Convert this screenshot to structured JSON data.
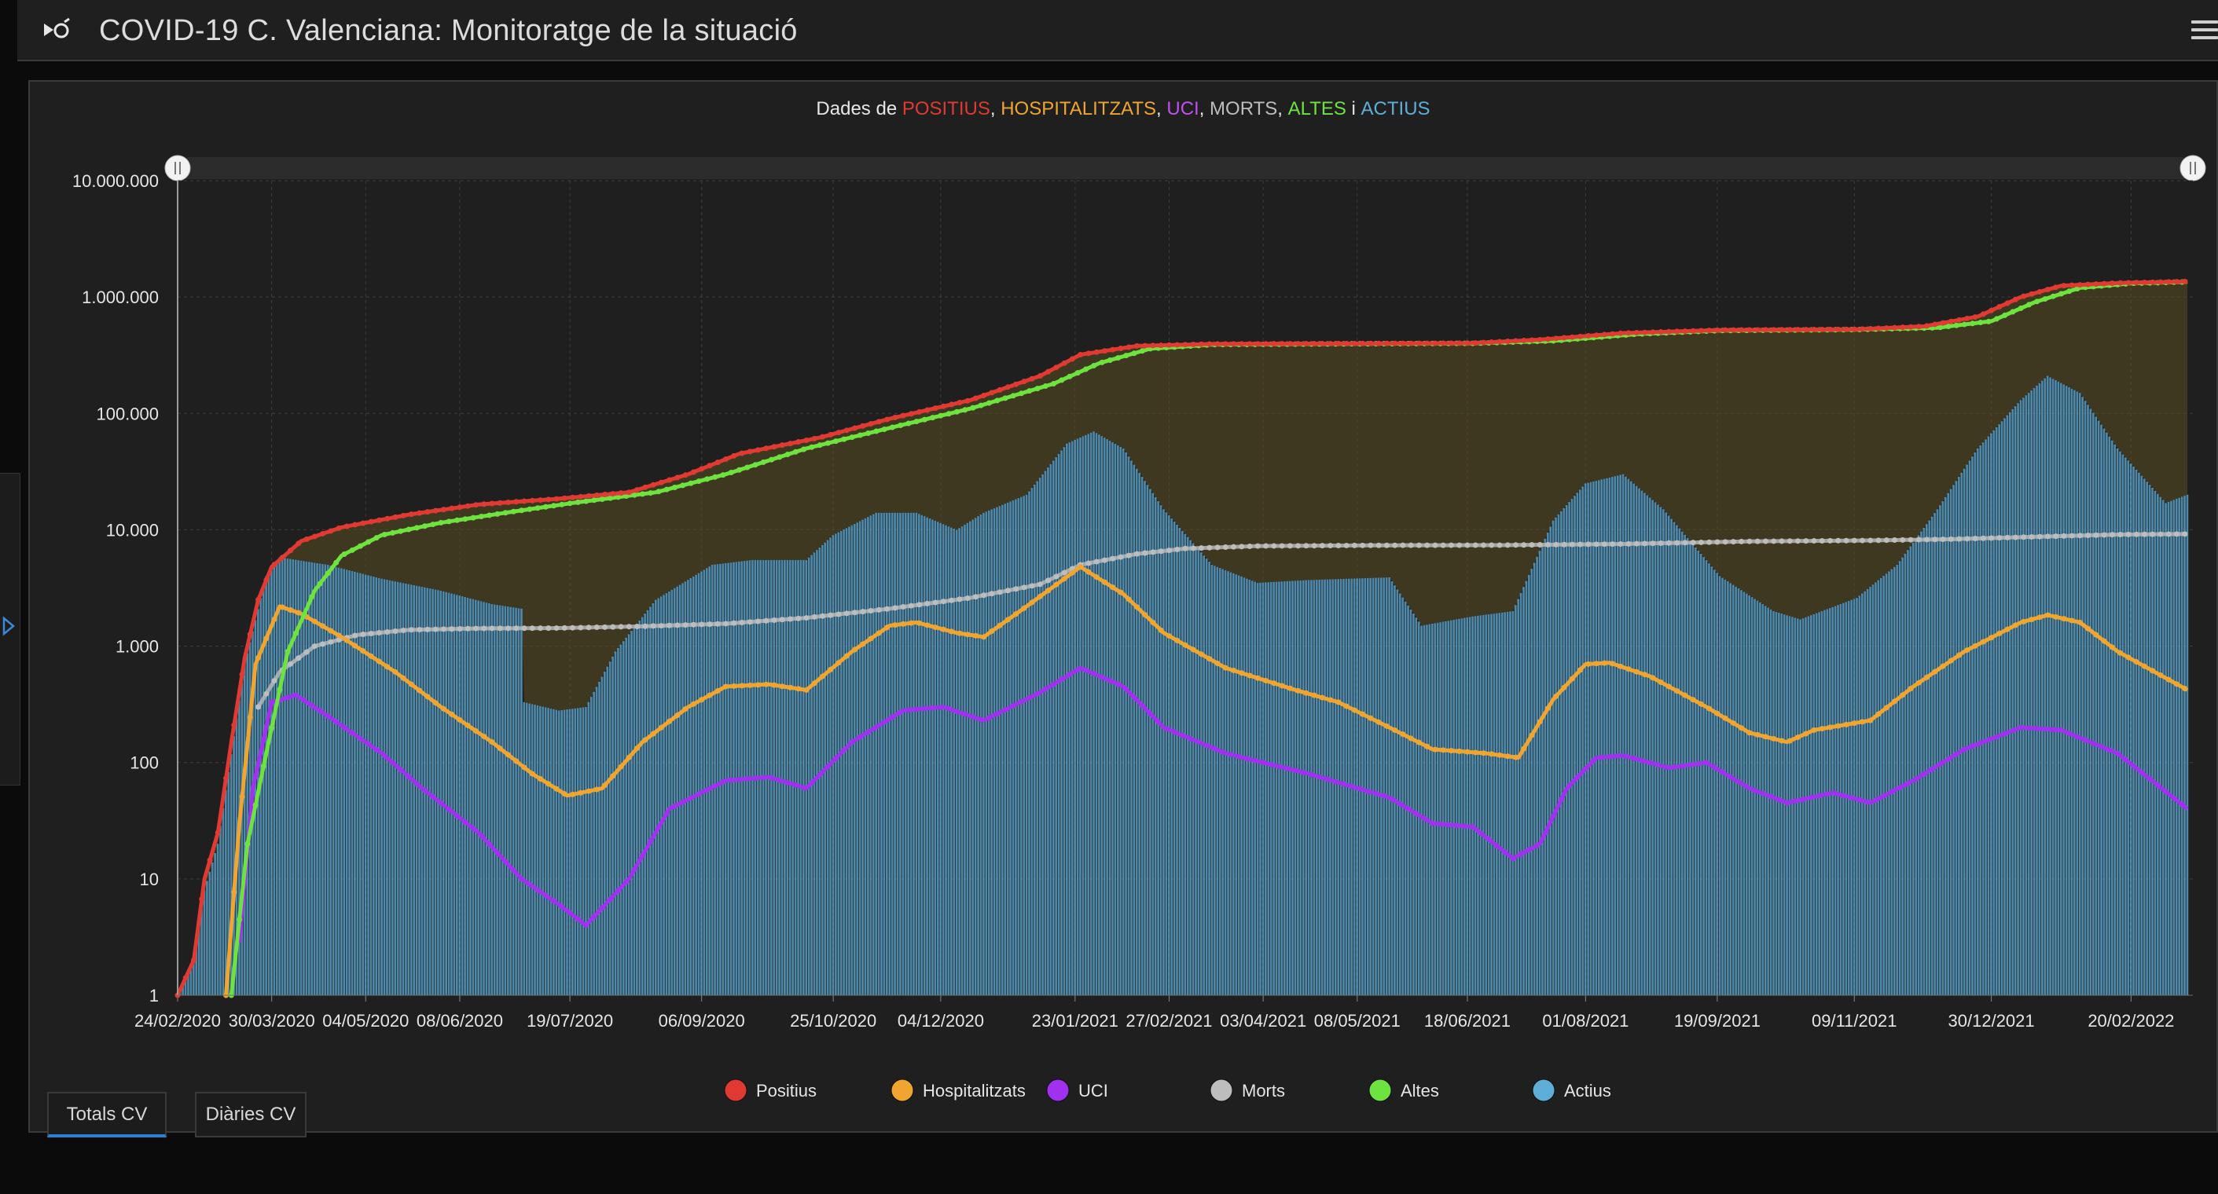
{
  "header": {
    "title": "COVID-19 C. Valenciana: Monitoratge de la situació"
  },
  "tabs": [
    {
      "label": "Totals CV",
      "active": true
    },
    {
      "label": "Diàries CV",
      "active": false
    }
  ],
  "colors": {
    "positius": "#e03a32",
    "hospitalitzats": "#f0a531",
    "uci": "#a230f0",
    "morts": "#bdbdbd",
    "altes": "#6ee33f",
    "actius": "#5faed9",
    "panel_bg": "#1f1f1f",
    "grid": "#3d3d3d",
    "text": "#e6e6e6"
  },
  "chart_data": {
    "type": "line",
    "title_parts": [
      {
        "text": "Dades de ",
        "color": "#e6e6e6"
      },
      {
        "text": "POSITIUS",
        "color": "#e03a32"
      },
      {
        "text": ", ",
        "color": "#e6e6e6"
      },
      {
        "text": "HOSPITALITZATS",
        "color": "#f0a531"
      },
      {
        "text": ", ",
        "color": "#e6e6e6"
      },
      {
        "text": "UCI",
        "color": "#c050f0"
      },
      {
        "text": ", ",
        "color": "#e6e6e6"
      },
      {
        "text": "MORTS",
        "color": "#bdbdbd"
      },
      {
        "text": ", ",
        "color": "#e6e6e6"
      },
      {
        "text": "ALTES",
        "color": "#6ee33f"
      },
      {
        "text": " i ",
        "color": "#e6e6e6"
      },
      {
        "text": "ACTIUS",
        "color": "#5faed9"
      }
    ],
    "y_scale": "log",
    "ylim": [
      1,
      10000000
    ],
    "y_tick_values": [
      1,
      10,
      100,
      1000,
      10000,
      100000,
      1000000,
      10000000
    ],
    "y_tick_labels": [
      "1",
      "10",
      "100",
      "1.000",
      "10.000",
      "100.000",
      "1.000.000",
      "10.000.000"
    ],
    "x_tick_labels": [
      "24/02/2020",
      "30/03/2020",
      "04/05/2020",
      "08/06/2020",
      "19/07/2020",
      "06/09/2020",
      "25/10/2020",
      "04/12/2020",
      "23/01/2021",
      "27/02/2021",
      "03/04/2021",
      "08/05/2021",
      "18/06/2021",
      "01/08/2021",
      "19/09/2021",
      "09/11/2021",
      "30/12/2021",
      "20/02/2022"
    ],
    "x_range": [
      "2020-02-24",
      "2022-03-15"
    ],
    "grid": true,
    "legend_position": "bottom",
    "series": [
      {
        "name": "Positius",
        "key": "positius",
        "style": "line",
        "points": [
          [
            "2020-02-24",
            1
          ],
          [
            "2020-03-01",
            2
          ],
          [
            "2020-03-05",
            10
          ],
          [
            "2020-03-10",
            25
          ],
          [
            "2020-03-15",
            150
          ],
          [
            "2020-03-20",
            800
          ],
          [
            "2020-03-25",
            2500
          ],
          [
            "2020-03-30",
            4800
          ],
          [
            "2020-04-10",
            8000
          ],
          [
            "2020-04-25",
            10500
          ],
          [
            "2020-05-20",
            13500
          ],
          [
            "2020-06-15",
            16500
          ],
          [
            "2020-07-15",
            18500
          ],
          [
            "2020-08-10",
            21000
          ],
          [
            "2020-09-01",
            30000
          ],
          [
            "2020-09-20",
            45000
          ],
          [
            "2020-10-20",
            62000
          ],
          [
            "2020-11-15",
            90000
          ],
          [
            "2020-12-15",
            130000
          ],
          [
            "2021-01-10",
            210000
          ],
          [
            "2021-01-25",
            320000
          ],
          [
            "2021-02-15",
            380000
          ],
          [
            "2021-03-15",
            395000
          ],
          [
            "2021-05-01",
            398000
          ],
          [
            "2021-06-20",
            402000
          ],
          [
            "2021-07-15",
            430000
          ],
          [
            "2021-08-15",
            490000
          ],
          [
            "2021-09-20",
            520000
          ],
          [
            "2021-11-10",
            528000
          ],
          [
            "2021-12-05",
            560000
          ],
          [
            "2021-12-25",
            680000
          ],
          [
            "2022-01-10",
            1000000
          ],
          [
            "2022-01-25",
            1250000
          ],
          [
            "2022-02-15",
            1320000
          ],
          [
            "2022-03-13",
            1360000
          ]
        ]
      },
      {
        "name": "Hospitalitzats",
        "key": "hospitalitzats",
        "style": "line",
        "points": [
          [
            "2020-03-13",
            1
          ],
          [
            "2020-03-18",
            30
          ],
          [
            "2020-03-24",
            700
          ],
          [
            "2020-04-02",
            2200
          ],
          [
            "2020-04-10",
            1900
          ],
          [
            "2020-04-25",
            1200
          ],
          [
            "2020-05-15",
            600
          ],
          [
            "2020-06-01",
            300
          ],
          [
            "2020-06-20",
            150
          ],
          [
            "2020-07-05",
            80
          ],
          [
            "2020-07-18",
            52
          ],
          [
            "2020-07-31",
            60
          ],
          [
            "2020-08-15",
            150
          ],
          [
            "2020-09-01",
            300
          ],
          [
            "2020-09-15",
            450
          ],
          [
            "2020-10-01",
            470
          ],
          [
            "2020-10-15",
            420
          ],
          [
            "2020-11-01",
            900
          ],
          [
            "2020-11-15",
            1500
          ],
          [
            "2020-11-25",
            1600
          ],
          [
            "2020-12-10",
            1300
          ],
          [
            "2020-12-20",
            1200
          ],
          [
            "2021-01-05",
            2200
          ],
          [
            "2021-01-25",
            4800
          ],
          [
            "2021-02-10",
            2800
          ],
          [
            "2021-02-25",
            1300
          ],
          [
            "2021-03-20",
            650
          ],
          [
            "2021-04-15",
            420
          ],
          [
            "2021-05-01",
            330
          ],
          [
            "2021-05-20",
            200
          ],
          [
            "2021-06-05",
            130
          ],
          [
            "2021-06-25",
            120
          ],
          [
            "2021-07-07",
            110
          ],
          [
            "2021-07-20",
            350
          ],
          [
            "2021-08-01",
            700
          ],
          [
            "2021-08-10",
            720
          ],
          [
            "2021-08-25",
            550
          ],
          [
            "2021-09-15",
            300
          ],
          [
            "2021-10-01",
            180
          ],
          [
            "2021-10-15",
            150
          ],
          [
            "2021-10-25",
            190
          ],
          [
            "2021-11-15",
            230
          ],
          [
            "2021-12-01",
            450
          ],
          [
            "2021-12-20",
            900
          ],
          [
            "2022-01-10",
            1600
          ],
          [
            "2022-01-20",
            1850
          ],
          [
            "2022-02-01",
            1600
          ],
          [
            "2022-02-15",
            900
          ],
          [
            "2022-03-13",
            420
          ]
        ]
      },
      {
        "name": "UCI",
        "key": "uci",
        "style": "line",
        "points": [
          [
            "2020-03-18",
            3
          ],
          [
            "2020-03-23",
            60
          ],
          [
            "2020-03-30",
            330
          ],
          [
            "2020-04-08",
            380
          ],
          [
            "2020-04-20",
            250
          ],
          [
            "2020-05-10",
            120
          ],
          [
            "2020-05-25",
            60
          ],
          [
            "2020-06-15",
            25
          ],
          [
            "2020-07-01",
            10
          ],
          [
            "2020-07-15",
            6
          ],
          [
            "2020-07-25",
            4
          ],
          [
            "2020-08-10",
            10
          ],
          [
            "2020-08-25",
            40
          ],
          [
            "2020-09-15",
            70
          ],
          [
            "2020-10-01",
            75
          ],
          [
            "2020-10-15",
            60
          ],
          [
            "2020-11-01",
            150
          ],
          [
            "2020-11-20",
            280
          ],
          [
            "2020-12-05",
            300
          ],
          [
            "2020-12-20",
            230
          ],
          [
            "2021-01-10",
            400
          ],
          [
            "2021-01-25",
            650
          ],
          [
            "2021-02-10",
            450
          ],
          [
            "2021-02-25",
            200
          ],
          [
            "2021-03-20",
            120
          ],
          [
            "2021-04-20",
            80
          ],
          [
            "2021-05-20",
            50
          ],
          [
            "2021-06-05",
            30
          ],
          [
            "2021-06-20",
            28
          ],
          [
            "2021-07-05",
            15
          ],
          [
            "2021-07-15",
            20
          ],
          [
            "2021-07-25",
            60
          ],
          [
            "2021-08-05",
            110
          ],
          [
            "2021-08-15",
            115
          ],
          [
            "2021-09-01",
            90
          ],
          [
            "2021-09-15",
            100
          ],
          [
            "2021-10-01",
            60
          ],
          [
            "2021-10-15",
            45
          ],
          [
            "2021-11-01",
            55
          ],
          [
            "2021-11-15",
            45
          ],
          [
            "2021-12-01",
            70
          ],
          [
            "2021-12-20",
            130
          ],
          [
            "2022-01-10",
            200
          ],
          [
            "2022-01-25",
            190
          ],
          [
            "2022-02-15",
            120
          ],
          [
            "2022-03-13",
            40
          ]
        ]
      },
      {
        "name": "Morts",
        "key": "morts",
        "style": "line",
        "points": [
          [
            "2020-03-25",
            300
          ],
          [
            "2020-04-02",
            600
          ],
          [
            "2020-04-15",
            1000
          ],
          [
            "2020-05-01",
            1250
          ],
          [
            "2020-05-20",
            1380
          ],
          [
            "2020-06-15",
            1420
          ],
          [
            "2020-07-15",
            1430
          ],
          [
            "2020-08-15",
            1480
          ],
          [
            "2020-09-15",
            1560
          ],
          [
            "2020-10-15",
            1750
          ],
          [
            "2020-11-15",
            2100
          ],
          [
            "2020-12-15",
            2600
          ],
          [
            "2021-01-10",
            3400
          ],
          [
            "2021-01-25",
            5000
          ],
          [
            "2021-02-15",
            6200
          ],
          [
            "2021-03-05",
            6900
          ],
          [
            "2021-04-01",
            7250
          ],
          [
            "2021-05-15",
            7350
          ],
          [
            "2021-07-01",
            7380
          ],
          [
            "2021-08-15",
            7550
          ],
          [
            "2021-10-01",
            7950
          ],
          [
            "2021-11-15",
            8100
          ],
          [
            "2021-12-15",
            8300
          ],
          [
            "2022-01-15",
            8700
          ],
          [
            "2022-02-15",
            9100
          ],
          [
            "2022-03-13",
            9200
          ]
        ]
      },
      {
        "name": "Altes",
        "key": "altes",
        "style": "line",
        "points": [
          [
            "2020-03-15",
            1
          ],
          [
            "2020-03-21",
            20
          ],
          [
            "2020-03-28",
            120
          ],
          [
            "2020-04-05",
            900
          ],
          [
            "2020-04-15",
            3000
          ],
          [
            "2020-04-25",
            6000
          ],
          [
            "2020-05-10",
            9000
          ],
          [
            "2020-06-01",
            11500
          ],
          [
            "2020-06-25",
            14000
          ],
          [
            "2020-07-20",
            17000
          ],
          [
            "2020-08-20",
            21000
          ],
          [
            "2020-09-15",
            30000
          ],
          [
            "2020-10-15",
            50000
          ],
          [
            "2020-11-15",
            75000
          ],
          [
            "2020-12-15",
            110000
          ],
          [
            "2021-01-15",
            180000
          ],
          [
            "2021-02-01",
            270000
          ],
          [
            "2021-02-20",
            360000
          ],
          [
            "2021-03-15",
            390000
          ],
          [
            "2021-05-01",
            396000
          ],
          [
            "2021-06-20",
            400000
          ],
          [
            "2021-07-20",
            420000
          ],
          [
            "2021-08-20",
            480000
          ],
          [
            "2021-09-20",
            515000
          ],
          [
            "2021-11-10",
            525000
          ],
          [
            "2021-12-10",
            545000
          ],
          [
            "2021-12-30",
            620000
          ],
          [
            "2022-01-15",
            900000
          ],
          [
            "2022-02-01",
            1200000
          ],
          [
            "2022-02-20",
            1310000
          ],
          [
            "2022-03-13",
            1350000
          ]
        ]
      },
      {
        "name": "Actius",
        "key": "actius",
        "style": "bar",
        "points": [
          [
            "2020-02-24",
            1
          ],
          [
            "2020-03-01",
            2
          ],
          [
            "2020-03-05",
            8
          ],
          [
            "2020-03-10",
            20
          ],
          [
            "2020-03-20",
            700
          ],
          [
            "2020-03-28",
            4000
          ],
          [
            "2020-04-02",
            5800
          ],
          [
            "2020-04-20",
            5000
          ],
          [
            "2020-05-10",
            3800
          ],
          [
            "2020-06-01",
            3000
          ],
          [
            "2020-06-20",
            2300
          ],
          [
            "2020-07-01",
            2100
          ],
          [
            "2020-07-02",
            330
          ],
          [
            "2020-07-15",
            280
          ],
          [
            "2020-07-25",
            300
          ],
          [
            "2020-08-05",
            900
          ],
          [
            "2020-08-20",
            2500
          ],
          [
            "2020-09-10",
            5000
          ],
          [
            "2020-09-25",
            5500
          ],
          [
            "2020-10-15",
            5500
          ],
          [
            "2020-10-25",
            9000
          ],
          [
            "2020-11-10",
            14000
          ],
          [
            "2020-11-25",
            14000
          ],
          [
            "2020-12-10",
            10000
          ],
          [
            "2020-12-20",
            14000
          ],
          [
            "2021-01-05",
            20000
          ],
          [
            "2021-01-20",
            55000
          ],
          [
            "2021-01-30",
            70000
          ],
          [
            "2021-02-10",
            50000
          ],
          [
            "2021-02-25",
            15000
          ],
          [
            "2021-03-15",
            5000
          ],
          [
            "2021-04-01",
            3500
          ],
          [
            "2021-04-20",
            3700
          ],
          [
            "2021-05-20",
            3900
          ],
          [
            "2021-06-01",
            1500
          ],
          [
            "2021-06-20",
            1800
          ],
          [
            "2021-07-05",
            2000
          ],
          [
            "2021-07-20",
            12000
          ],
          [
            "2021-08-01",
            25000
          ],
          [
            "2021-08-15",
            30000
          ],
          [
            "2021-08-30",
            15000
          ],
          [
            "2021-09-20",
            4000
          ],
          [
            "2021-10-10",
            2000
          ],
          [
            "2021-10-20",
            1700
          ],
          [
            "2021-11-10",
            2600
          ],
          [
            "2021-11-25",
            5000
          ],
          [
            "2021-12-10",
            15000
          ],
          [
            "2021-12-25",
            50000
          ],
          [
            "2022-01-10",
            130000
          ],
          [
            "2022-01-20",
            210000
          ],
          [
            "2022-02-01",
            150000
          ],
          [
            "2022-02-15",
            50000
          ],
          [
            "2022-03-05",
            17000
          ],
          [
            "2022-03-13",
            20000
          ]
        ]
      }
    ]
  }
}
